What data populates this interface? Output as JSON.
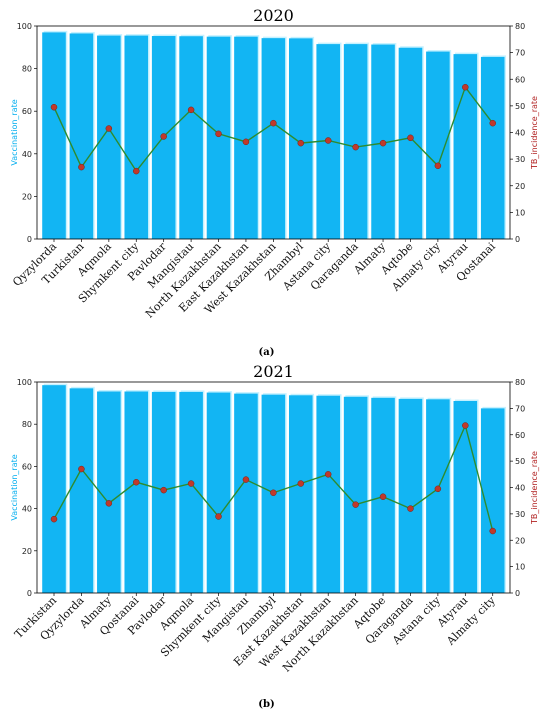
{
  "chart_data": [
    {
      "type": "bar",
      "title": "2020",
      "panel_label": "(a)",
      "categories": [
        "Qyzylorda",
        "Turkistan",
        "Aqmola",
        "Shymkent city",
        "Pavlodar",
        "Mangistau",
        "North Kazakhstan",
        "East Kazakhstan",
        "West Kazakhstan",
        "Zhambyl",
        "Astana city",
        "Qaraganda",
        "Almaty",
        "Aqtobe",
        "Almaty city",
        "Atyrau",
        "Qostanai"
      ],
      "series": [
        {
          "name": "Vaccination_rate",
          "chart_type": "bar",
          "axis": "left",
          "values": [
            97,
            96.5,
            95.5,
            95.5,
            95.3,
            95.2,
            95,
            95,
            94.3,
            94.2,
            91.5,
            91.5,
            91.3,
            89.8,
            88,
            86.8,
            85.5
          ],
          "color": "#12b5f3"
        },
        {
          "name": "TB_incidence_rate",
          "chart_type": "line",
          "axis": "right",
          "values": [
            49.5,
            27,
            41.5,
            25.5,
            38.5,
            48.5,
            39.5,
            36.5,
            43.5,
            36,
            37,
            34.5,
            36,
            38,
            27.5,
            57,
            43.5
          ],
          "color": "#2e8b2e",
          "marker_color": "#c0392b"
        }
      ],
      "ylabel": "Vaccination_rate",
      "y2label": "TB_incidence_rate",
      "ylim": [
        0,
        100
      ],
      "y2lim": [
        0,
        80
      ],
      "yticks": [
        "0",
        "20",
        "40",
        "60",
        "80",
        "100"
      ],
      "y2ticks": [
        "0",
        "10",
        "20",
        "30",
        "40",
        "50",
        "60",
        "70",
        "80"
      ],
      "grid": false,
      "legend": "none"
    },
    {
      "type": "bar",
      "title": "2021",
      "panel_label": "(b)",
      "categories": [
        "Turkistan",
        "Qyzylorda",
        "Almaty",
        "Qostanai",
        "Pavlodar",
        "Aqmola",
        "Shymkent city",
        "Mangistau",
        "Zhambyl",
        "East Kazakhstan",
        "West Kazakhstan",
        "North Kazakhstan",
        "Aqtobe",
        "Qaraganda",
        "Astana city",
        "Atyrau",
        "Almaty city"
      ],
      "series": [
        {
          "name": "Vaccination_rate",
          "chart_type": "bar",
          "axis": "left",
          "values": [
            98.5,
            97,
            95.5,
            95.5,
            95.3,
            95.3,
            95,
            94.5,
            94,
            93.7,
            93.5,
            93,
            92.5,
            92,
            91.8,
            91,
            87.5
          ],
          "color": "#12b5f3"
        },
        {
          "name": "TB_incidence_rate",
          "chart_type": "line",
          "axis": "right",
          "values": [
            28,
            47,
            34,
            42,
            39,
            41.5,
            29,
            43,
            38,
            41.5,
            45,
            33.5,
            36.5,
            32,
            39.5,
            63.5,
            23.5
          ],
          "color": "#2e8b2e",
          "marker_color": "#c0392b"
        }
      ],
      "ylabel": "Vaccination_rate",
      "y2label": "TB_incidence_rate",
      "ylim": [
        0,
        100
      ],
      "y2lim": [
        0,
        80
      ],
      "yticks": [
        "0",
        "20",
        "40",
        "60",
        "80",
        "100"
      ],
      "y2ticks": [
        "0",
        "10",
        "20",
        "30",
        "40",
        "50",
        "60",
        "70",
        "80"
      ],
      "grid": false,
      "legend": "none"
    }
  ]
}
